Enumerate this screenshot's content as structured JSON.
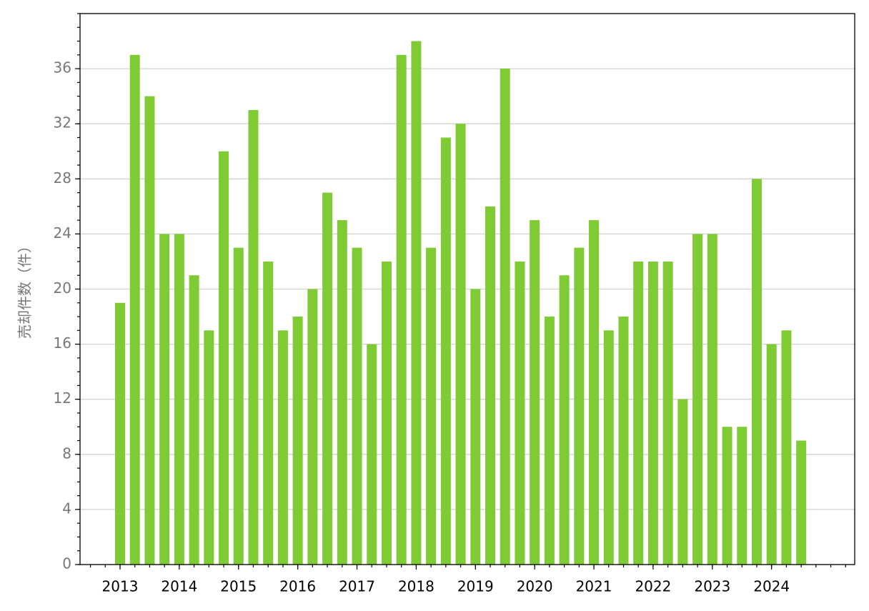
{
  "chart_data": {
    "type": "bar",
    "y_label": "売却件数（件）",
    "categories": [
      "2013",
      null,
      null,
      null,
      "2014",
      null,
      null,
      null,
      "2015",
      null,
      null,
      null,
      "2016",
      null,
      null,
      null,
      "2017",
      null,
      null,
      null,
      "2018",
      null,
      null,
      null,
      "2019",
      null,
      null,
      null,
      "2020",
      null,
      null,
      null,
      "2021",
      null,
      null,
      null,
      "2022",
      null,
      null,
      null,
      "2023",
      null,
      null,
      null,
      "2024",
      null,
      null
    ],
    "values": [
      19,
      37,
      34,
      24,
      24,
      21,
      17,
      30,
      23,
      33,
      22,
      17,
      18,
      20,
      27,
      25,
      23,
      16,
      22,
      37,
      38,
      23,
      31,
      32,
      20,
      26,
      36,
      22,
      25,
      18,
      21,
      23,
      25,
      17,
      18,
      22,
      22,
      22,
      12,
      24,
      24,
      10,
      10,
      28,
      16,
      17,
      9
    ],
    "color": "#7ecb33",
    "ylim": [
      0,
      40
    ],
    "yticks": [
      0,
      4,
      8,
      12,
      16,
      20,
      24,
      28,
      32,
      36
    ],
    "grid": true
  }
}
